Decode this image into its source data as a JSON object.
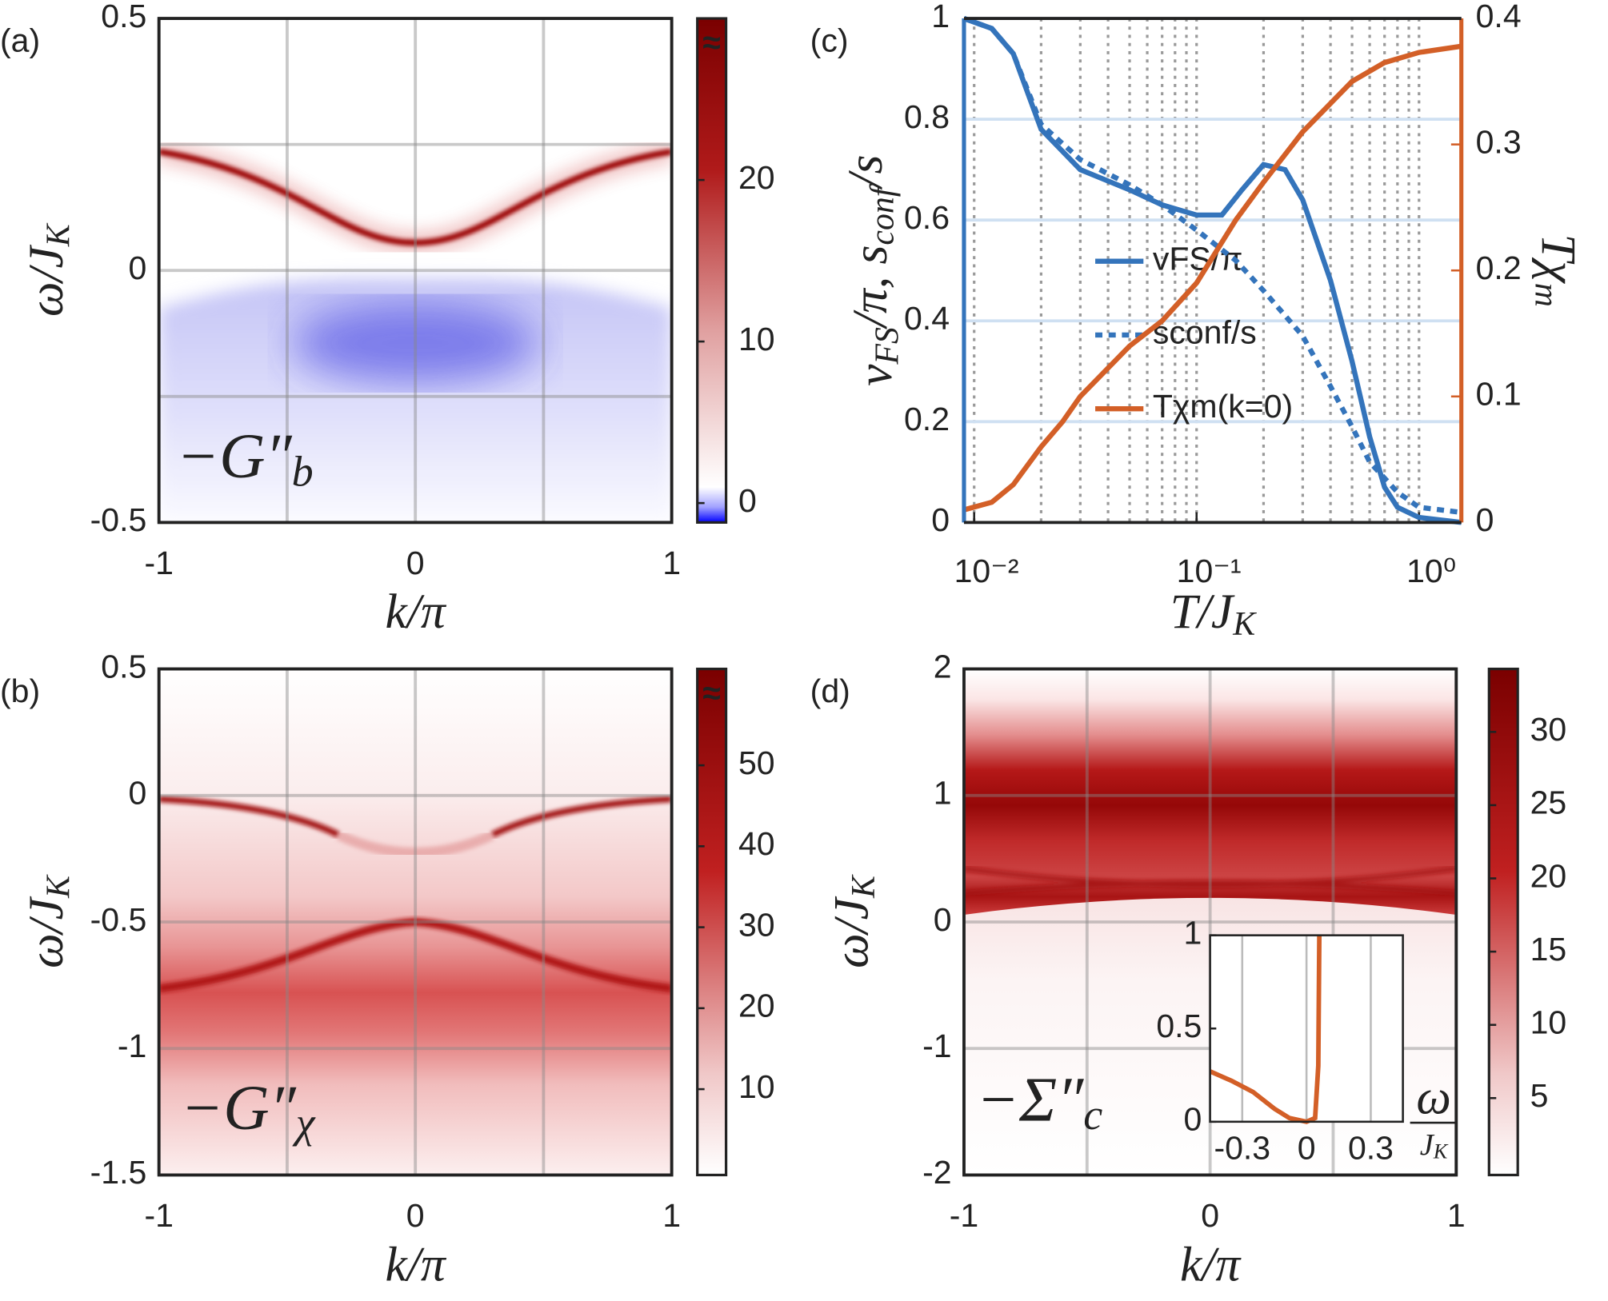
{
  "chart_data": [
    {
      "type": "heatmap",
      "panel_label": "(a)",
      "xlim": [
        -1,
        1
      ],
      "xticks": [
        -1,
        0,
        1
      ],
      "xminor": [
        -0.5,
        0.5
      ],
      "ylim": [
        -0.5,
        0.5
      ],
      "yticks": [
        -0.5,
        0,
        0.5
      ],
      "yminor": [
        -0.25,
        0.25
      ],
      "xlabel": {
        "text": "k/π"
      },
      "ylabel": {
        "text": "ω/J",
        "sub": "K"
      },
      "annotation": {
        "text": "−G″",
        "sub": "b"
      },
      "clim": [
        -1.2,
        30
      ],
      "cticks": [
        0,
        10,
        20
      ],
      "colorbar_break": "≈",
      "grid": true
    },
    {
      "type": "heatmap",
      "panel_label": "(b)",
      "xlim": [
        -1,
        1
      ],
      "xticks": [
        -1,
        0,
        1
      ],
      "xminor": [
        -0.5,
        0.5
      ],
      "ylim": [
        -1.5,
        0.5
      ],
      "yticks": [
        -1.5,
        -1,
        -0.5,
        0,
        0.5
      ],
      "xlabel": {
        "text": "k/π"
      },
      "ylabel": {
        "text": "ω/J",
        "sub": "K"
      },
      "annotation": {
        "text": "−G″",
        "sub": "χ"
      },
      "clim": [
        -0.6,
        61.9
      ],
      "cticks": [
        10,
        20,
        30,
        40,
        50
      ],
      "colorbar_break": "≈",
      "grid": true
    },
    {
      "type": "line",
      "panel_label": "(c)",
      "xscale": "log",
      "xlim": [
        0.009,
        1.55
      ],
      "xticks": [
        {
          "value": 0.01,
          "label": "10⁻²"
        },
        {
          "value": 0.1,
          "label": "10⁻¹"
        },
        {
          "value": 1,
          "label": "10⁰"
        }
      ],
      "ylim": [
        0,
        1
      ],
      "yticks": [
        0,
        0.2,
        0.4,
        0.6,
        0.8,
        1
      ],
      "y2lim": [
        0,
        0.4
      ],
      "y2ticks": [
        0,
        0.1,
        0.2,
        0.3,
        0.4
      ],
      "xlabel": {
        "text": "T/J",
        "sub": "K"
      },
      "ylabel": [
        {
          "text": "v",
          "sub": "FS"
        },
        {
          "text": "/π, s",
          "sub": "conf"
        },
        {
          "text": "/s"
        }
      ],
      "y2label": {
        "text": "Tχ",
        "sub": "m"
      },
      "color": "#3474bb",
      "color2": "#d35f27",
      "grid": true,
      "legend": "center",
      "series": [
        {
          "name": "vFS/π",
          "color": "#3474bb",
          "style": "solid",
          "x": [
            0.009,
            0.012,
            0.015,
            0.02,
            0.03,
            0.05,
            0.07,
            0.1,
            0.13,
            0.16,
            0.2,
            0.25,
            0.3,
            0.4,
            0.5,
            0.6,
            0.7,
            0.8,
            1.0,
            1.55
          ],
          "values": [
            1.0,
            0.98,
            0.93,
            0.78,
            0.7,
            0.66,
            0.63,
            0.61,
            0.61,
            0.66,
            0.71,
            0.7,
            0.64,
            0.48,
            0.32,
            0.17,
            0.07,
            0.03,
            0.01,
            0.0
          ]
        },
        {
          "name": "sconf/s",
          "color": "#3474bb",
          "style": "dotted",
          "x": [
            0.009,
            0.012,
            0.015,
            0.02,
            0.03,
            0.05,
            0.07,
            0.1,
            0.15,
            0.2,
            0.3,
            0.4,
            0.5,
            0.6,
            0.8,
            1.0,
            1.55
          ],
          "values": [
            1.0,
            0.98,
            0.93,
            0.79,
            0.72,
            0.67,
            0.63,
            0.58,
            0.52,
            0.46,
            0.37,
            0.27,
            0.19,
            0.12,
            0.06,
            0.03,
            0.02
          ]
        },
        {
          "name": "Tχm(k=0)",
          "color": "#d35f27",
          "style": "solid",
          "axis": "y2",
          "x": [
            0.009,
            0.012,
            0.015,
            0.02,
            0.025,
            0.03,
            0.05,
            0.07,
            0.1,
            0.15,
            0.2,
            0.3,
            0.5,
            0.7,
            1.0,
            1.55
          ],
          "values": [
            0.01,
            0.016,
            0.03,
            0.06,
            0.08,
            0.1,
            0.14,
            0.16,
            0.19,
            0.24,
            0.27,
            0.31,
            0.35,
            0.365,
            0.373,
            0.378
          ]
        }
      ]
    },
    {
      "type": "heatmap",
      "panel_label": "(d)",
      "xlim": [
        -1,
        1
      ],
      "xticks": [
        -1,
        0,
        1
      ],
      "xminor": [
        -0.5,
        0.5
      ],
      "ylim": [
        -2,
        2
      ],
      "yticks": [
        -2,
        -1,
        0,
        1,
        2
      ],
      "xlabel": {
        "text": "k/π"
      },
      "ylabel": {
        "text": "ω/J",
        "sub": "K"
      },
      "annotation": {
        "text": "−Σ″",
        "sub": "c"
      },
      "clim": [
        -0.25,
        34.3
      ],
      "cticks": [
        5,
        10,
        15,
        20,
        25,
        30
      ],
      "grid": true,
      "inset": {
        "type": "line",
        "xlim": [
          -0.45,
          0.45
        ],
        "xticks": [
          -0.3,
          0,
          0.3
        ],
        "ylim": [
          0,
          1
        ],
        "yticks": [
          0,
          0.5,
          1
        ],
        "xlabel_num": "ω",
        "xlabel_den": {
          "text": "J",
          "sub": "K"
        },
        "color": "#d35f27",
        "x": [
          -0.45,
          -0.35,
          -0.25,
          -0.15,
          -0.08,
          0,
          0.04,
          0.055,
          0.06
        ],
        "values": [
          0.27,
          0.22,
          0.16,
          0.07,
          0.02,
          0.0,
          0.02,
          0.3,
          1.0
        ]
      }
    }
  ]
}
